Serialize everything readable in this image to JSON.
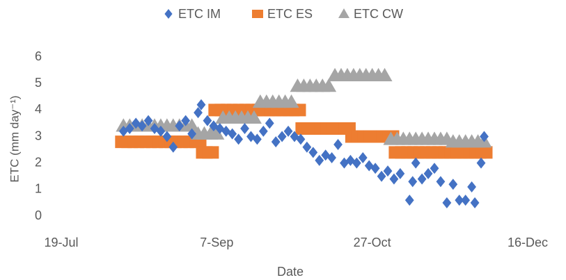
{
  "chart_data": {
    "type": "scatter",
    "xlabel": "Date",
    "ylabel": "ETC (mm day⁻¹)",
    "xlim": [
      "19-Jul",
      "16-Dec"
    ],
    "xticks": [
      "19-Jul",
      "7-Sep",
      "27-Oct",
      "16-Dec"
    ],
    "ylim": [
      0,
      6
    ],
    "yticks": [
      0,
      1,
      2,
      3,
      4,
      5,
      6
    ],
    "grid": false,
    "legend": "top",
    "series": [
      {
        "name": "ETC IM",
        "color": "#4472c4",
        "marker": "diamond",
        "x": [
          "8-Aug",
          "10-Aug",
          "12-Aug",
          "14-Aug",
          "16-Aug",
          "18-Aug",
          "20-Aug",
          "22-Aug",
          "24-Aug",
          "26-Aug",
          "28-Aug",
          "30-Aug",
          "1-Sep",
          "2-Sep",
          "4-Sep",
          "6-Sep",
          "8-Sep",
          "10-Sep",
          "12-Sep",
          "14-Sep",
          "16-Sep",
          "18-Sep",
          "20-Sep",
          "22-Sep",
          "24-Sep",
          "26-Sep",
          "28-Sep",
          "30-Sep",
          "2-Oct",
          "4-Oct",
          "6-Oct",
          "8-Oct",
          "10-Oct",
          "12-Oct",
          "14-Oct",
          "16-Oct",
          "18-Oct",
          "20-Oct",
          "22-Oct",
          "24-Oct",
          "26-Oct",
          "28-Oct",
          "30-Oct",
          "1-Nov",
          "3-Nov",
          "5-Nov",
          "8-Nov",
          "9-Nov",
          "10-Nov",
          "12-Nov",
          "14-Nov",
          "16-Nov",
          "18-Nov",
          "20-Nov",
          "22-Nov",
          "24-Nov",
          "26-Nov",
          "28-Nov",
          "29-Nov",
          "1-Dec",
          "2-Dec"
        ],
        "values": [
          3.2,
          3.3,
          3.5,
          3.4,
          3.6,
          3.3,
          3.2,
          3.0,
          2.6,
          3.4,
          3.6,
          3.1,
          3.9,
          4.2,
          3.6,
          3.4,
          3.3,
          3.2,
          3.1,
          2.9,
          3.3,
          3.0,
          2.9,
          3.2,
          3.5,
          2.8,
          3.0,
          3.2,
          3.0,
          2.9,
          2.6,
          2.4,
          2.1,
          2.3,
          2.2,
          2.7,
          2.0,
          2.1,
          2.0,
          2.2,
          1.9,
          1.8,
          1.5,
          1.7,
          1.4,
          1.6,
          0.6,
          1.3,
          2.0,
          1.4,
          1.6,
          1.8,
          1.3,
          0.5,
          1.2,
          0.6,
          0.6,
          1.1,
          0.5,
          2.0,
          3.0
        ]
      },
      {
        "name": "ETC ES",
        "color": "#ed7d31",
        "marker": "square",
        "x": [
          "8-Aug",
          "10-Aug",
          "12-Aug",
          "14-Aug",
          "16-Aug",
          "18-Aug",
          "20-Aug",
          "22-Aug",
          "24-Aug",
          "26-Aug",
          "28-Aug",
          "30-Aug",
          "1-Sep",
          "3-Sep",
          "5-Sep",
          "7-Sep",
          "9-Sep",
          "11-Sep",
          "13-Sep",
          "15-Sep",
          "17-Sep",
          "19-Sep",
          "21-Sep",
          "23-Sep",
          "25-Sep",
          "27-Sep",
          "29-Sep",
          "1-Oct",
          "3-Oct",
          "5-Oct",
          "7-Oct",
          "9-Oct",
          "11-Oct",
          "13-Oct",
          "15-Oct",
          "17-Oct",
          "19-Oct",
          "21-Oct",
          "23-Oct",
          "25-Oct",
          "27-Oct",
          "29-Oct",
          "31-Oct",
          "2-Nov",
          "4-Nov",
          "6-Nov",
          "8-Nov",
          "10-Nov",
          "12-Nov",
          "14-Nov",
          "16-Nov",
          "18-Nov",
          "20-Nov",
          "22-Nov",
          "24-Nov",
          "26-Nov",
          "28-Nov",
          "30-Nov",
          "2-Dec"
        ],
        "values": [
          2.8,
          2.8,
          2.8,
          2.8,
          2.8,
          2.8,
          2.8,
          2.8,
          2.8,
          2.8,
          2.8,
          2.8,
          2.8,
          2.4,
          2.4,
          4.0,
          4.0,
          4.0,
          4.0,
          4.0,
          4.0,
          4.0,
          4.0,
          4.0,
          4.0,
          4.0,
          4.0,
          4.0,
          4.0,
          3.3,
          3.3,
          3.3,
          3.3,
          3.3,
          3.3,
          3.3,
          3.3,
          3.0,
          3.0,
          3.0,
          3.0,
          3.0,
          3.0,
          3.0,
          2.4,
          2.4,
          2.4,
          2.4,
          2.4,
          2.4,
          2.4,
          2.4,
          2.4,
          2.4,
          2.4,
          2.4,
          2.4,
          2.4,
          2.4
        ]
      },
      {
        "name": "ETC CW",
        "color": "#a5a5a5",
        "marker": "triangle",
        "x": [
          "8-Aug",
          "10-Aug",
          "12-Aug",
          "14-Aug",
          "16-Aug",
          "18-Aug",
          "20-Aug",
          "22-Aug",
          "24-Aug",
          "26-Aug",
          "28-Aug",
          "30-Aug",
          "1-Sep",
          "3-Sep",
          "5-Sep",
          "7-Sep",
          "9-Sep",
          "11-Sep",
          "13-Sep",
          "15-Sep",
          "17-Sep",
          "19-Sep",
          "21-Sep",
          "23-Sep",
          "25-Sep",
          "27-Sep",
          "29-Sep",
          "1-Oct",
          "3-Oct",
          "5-Oct",
          "7-Oct",
          "9-Oct",
          "11-Oct",
          "13-Oct",
          "15-Oct",
          "17-Oct",
          "19-Oct",
          "21-Oct",
          "23-Oct",
          "25-Oct",
          "27-Oct",
          "29-Oct",
          "31-Oct",
          "2-Nov",
          "4-Nov",
          "6-Nov",
          "8-Nov",
          "10-Nov",
          "12-Nov",
          "14-Nov",
          "16-Nov",
          "18-Nov",
          "20-Nov",
          "22-Nov",
          "24-Nov",
          "26-Nov",
          "28-Nov",
          "30-Nov",
          "2-Dec"
        ],
        "values": [
          3.4,
          3.4,
          3.4,
          3.4,
          3.4,
          3.4,
          3.4,
          3.4,
          3.4,
          3.4,
          3.4,
          3.4,
          3.1,
          3.1,
          3.1,
          3.1,
          3.7,
          3.7,
          3.7,
          3.7,
          3.7,
          3.7,
          4.3,
          4.3,
          4.3,
          4.3,
          4.3,
          4.3,
          4.9,
          4.9,
          4.9,
          4.9,
          4.9,
          4.9,
          5.3,
          5.3,
          5.3,
          5.3,
          5.3,
          5.3,
          5.3,
          5.3,
          5.3,
          2.9,
          2.9,
          2.9,
          2.9,
          2.9,
          2.9,
          2.9,
          2.9,
          2.9,
          2.9,
          2.8,
          2.8,
          2.8,
          2.8,
          2.8,
          2.8
        ]
      }
    ]
  }
}
